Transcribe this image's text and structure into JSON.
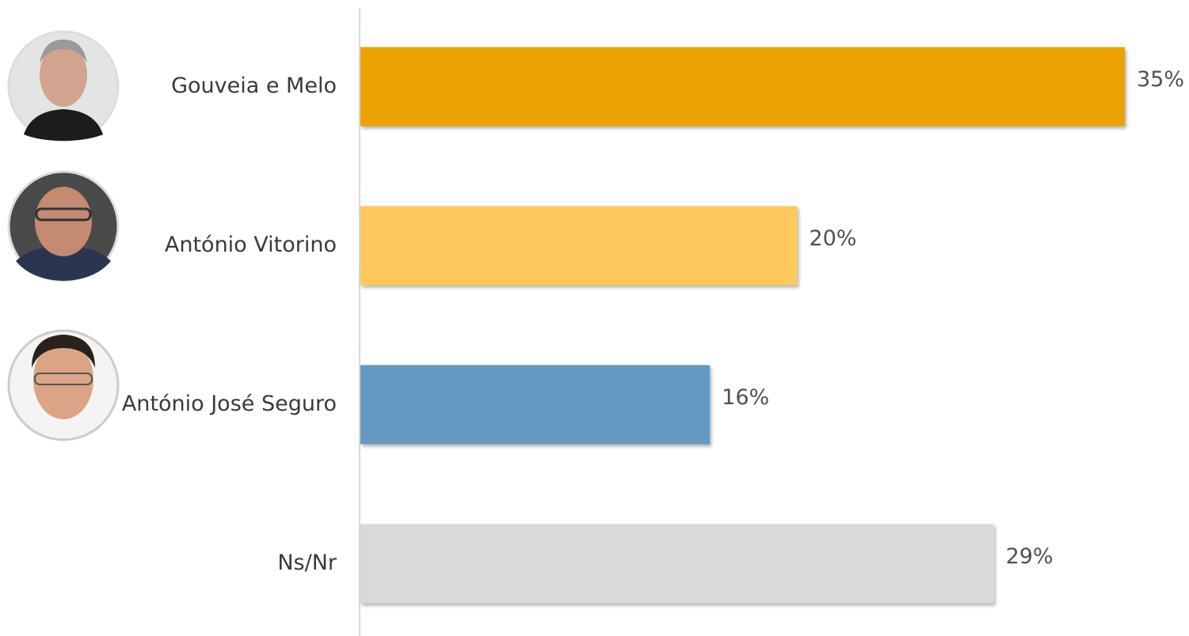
{
  "chart_data": {
    "type": "bar",
    "orientation": "horizontal",
    "categories": [
      "Gouveia e Melo",
      "António Vitorino",
      "António José Seguro",
      "Ns/Nr"
    ],
    "values": [
      35,
      20,
      16,
      29
    ],
    "value_labels": [
      "35%",
      "20%",
      "16%",
      "29%"
    ],
    "colors": [
      "#eca200",
      "#fdc95c",
      "#6599c1",
      "#d9d9d9"
    ]
  }
}
